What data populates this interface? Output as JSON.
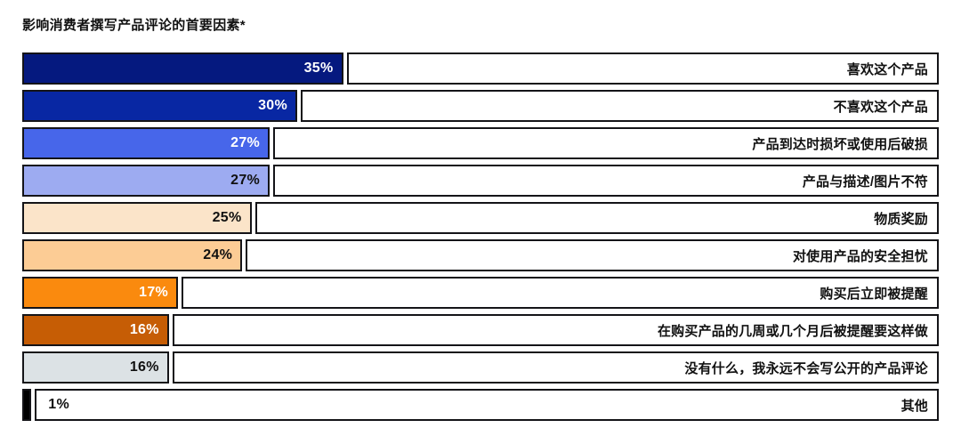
{
  "title": "影响消费者撰写产品评论的首要因素*",
  "chart_data": {
    "type": "bar",
    "orientation": "horizontal",
    "title": "影响消费者撰写产品评论的首要因素*",
    "unit": "%",
    "value_axis_range": [
      0,
      100
    ],
    "grid": false,
    "legend": false,
    "background_color": "#ffffff",
    "border_color": "#141418",
    "bars": [
      {
        "category": "喜欢这个产品",
        "value": 35,
        "value_label": "35%",
        "color": "#05197f",
        "value_text_color": "#ffffff"
      },
      {
        "category": "不喜欢这个产品",
        "value": 30,
        "value_label": "30%",
        "color": "#0827a3",
        "value_text_color": "#ffffff"
      },
      {
        "category": "产品到达时损坏或使用后破损",
        "value": 27,
        "value_label": "27%",
        "color": "#4766ea",
        "value_text_color": "#ffffff"
      },
      {
        "category": "产品与描述/图片不符",
        "value": 27,
        "value_label": "27%",
        "color": "#9dabf1",
        "value_text_color": "#111111"
      },
      {
        "category": "物质奖励",
        "value": 25,
        "value_label": "25%",
        "color": "#fbe4c9",
        "value_text_color": "#111111"
      },
      {
        "category": "对使用产品的安全担忧",
        "value": 24,
        "value_label": "24%",
        "color": "#fccc95",
        "value_text_color": "#111111"
      },
      {
        "category": "购买后立即被提醒",
        "value": 17,
        "value_label": "17%",
        "color": "#fa8a0e",
        "value_text_color": "#ffffff"
      },
      {
        "category": "在购买产品的几周或几个月后被提醒要这样做",
        "value": 16,
        "value_label": "16%",
        "color": "#c65d05",
        "value_text_color": "#ffffff"
      },
      {
        "category": "没有什么，我永远不会写公开的产品评论",
        "value": 16,
        "value_label": "16%",
        "color": "#dce2e5",
        "value_text_color": "#111111"
      },
      {
        "category": "其他",
        "value": 1,
        "value_label": "1%",
        "color": "#000000",
        "value_text_color": "#111111",
        "label_outside": true
      }
    ]
  }
}
